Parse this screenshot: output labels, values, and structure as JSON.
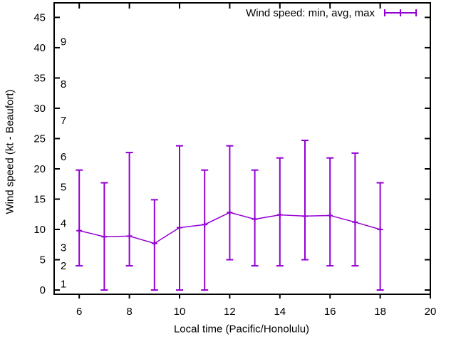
{
  "figure": {
    "xlabel": "Local time (Pacific/Honolulu)",
    "ylabel": "Wind speed (kt - Beaufort)",
    "legend_label": "Wind speed: min, avg, max"
  },
  "chart_data": {
    "type": "line",
    "style": "errorbars (min-max whiskers with avg point marker)",
    "title": "",
    "xlabel": "Local time (Pacific/Honolulu)",
    "ylabel": "Wind speed (kt - Beaufort)",
    "legend": {
      "label": "Wind speed: min, avg, max",
      "position": "top-right-inside"
    },
    "series_color": "#9400d3",
    "axis_color": "#000000",
    "background_color": "#ffffff",
    "grid": false,
    "xlim": [
      5,
      20
    ],
    "ylim": [
      -0.7,
      47.4
    ],
    "x_ticks": [
      6,
      8,
      10,
      12,
      14,
      16,
      18,
      20
    ],
    "y_ticks": [
      0,
      5,
      10,
      15,
      20,
      25,
      30,
      35,
      40,
      45
    ],
    "x": [
      6,
      7,
      8,
      9,
      10,
      11,
      12,
      13,
      14,
      15,
      16,
      17,
      18
    ],
    "series": [
      {
        "name": "min",
        "values": [
          4,
          0,
          4,
          0,
          0,
          0,
          5,
          4,
          4,
          5,
          4,
          4,
          0
        ]
      },
      {
        "name": "avg",
        "values": [
          9.8,
          8.8,
          8.9,
          7.7,
          10.3,
          10.8,
          12.8,
          11.7,
          12.4,
          12.2,
          12.3,
          11.2,
          10.0
        ]
      },
      {
        "name": "max",
        "values": [
          19.8,
          17.7,
          22.7,
          14.9,
          23.8,
          19.8,
          23.8,
          19.8,
          21.8,
          24.7,
          21.8,
          22.6,
          17.7
        ]
      }
    ],
    "beaufort_scale_labels": [
      {
        "beaufort": "1",
        "kt": 1
      },
      {
        "beaufort": "2",
        "kt": 4
      },
      {
        "beaufort": "3",
        "kt": 7
      },
      {
        "beaufort": "4",
        "kt": 11
      },
      {
        "beaufort": "5",
        "kt": 17
      },
      {
        "beaufort": "6",
        "kt": 22
      },
      {
        "beaufort": "7",
        "kt": 28
      },
      {
        "beaufort": "8",
        "kt": 34
      },
      {
        "beaufort": "9",
        "kt": 41
      }
    ]
  }
}
